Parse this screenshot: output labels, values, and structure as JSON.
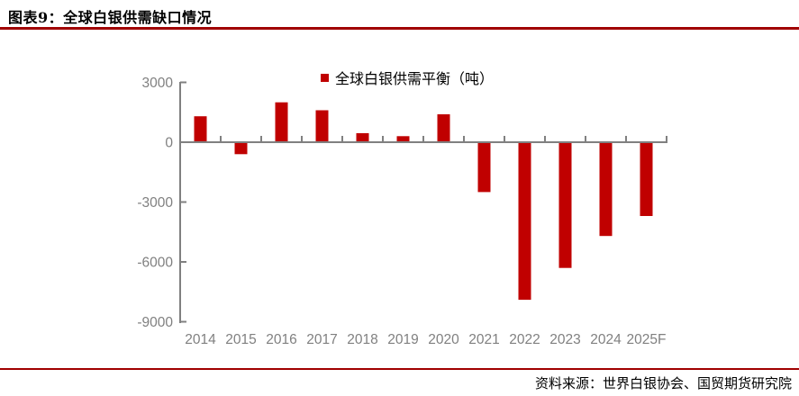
{
  "header": {
    "title": "图表9：全球白银供需缺口情况"
  },
  "legend": {
    "marker_icon": "red-square-icon"
  },
  "footer": {
    "source": "资料来源：世界白银协会、国贸期货研究院"
  },
  "colors": {
    "bar": "#c00000",
    "rule": "#a00000",
    "axis": "#808080",
    "tick_label": "#808080"
  },
  "chart_data": {
    "type": "bar",
    "title": "",
    "legend": [
      "全球白银供需平衡（吨）"
    ],
    "legend_position": "top-center",
    "categories": [
      "2014",
      "2015",
      "2016",
      "2017",
      "2018",
      "2019",
      "2020",
      "2021",
      "2022",
      "2023",
      "2024",
      "2025F"
    ],
    "series": [
      {
        "name": "全球白银供需平衡（吨）",
        "values": [
          1300,
          -600,
          2000,
          1600,
          450,
          300,
          1400,
          -2500,
          -7900,
          -6300,
          -4700,
          -3700
        ]
      }
    ],
    "xlabel": "",
    "ylabel": "",
    "ylim": [
      -9000,
      3000
    ],
    "yticks": [
      3000,
      0,
      -3000,
      -6000,
      -9000
    ],
    "grid": false,
    "bar_color": "#c00000"
  }
}
